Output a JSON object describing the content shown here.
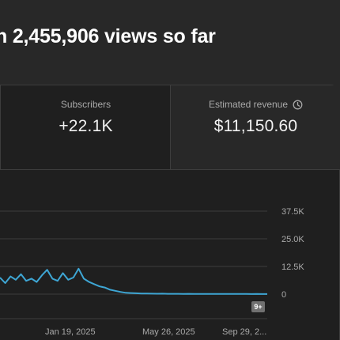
{
  "headline": "n 2,455,906 views so far",
  "metrics": [
    {
      "label": "Subscribers",
      "value": "+22.1K"
    },
    {
      "label": "Estimated revenue",
      "value": "$11,150.60",
      "icon": "clock-icon"
    }
  ],
  "badge": "9+",
  "colors": {
    "line": "#3ea6d4",
    "grid": "#3d3d3d",
    "background": "#282828"
  },
  "chart_data": {
    "type": "line",
    "title": "",
    "xlabel": "",
    "ylabel": "",
    "ylim": [
      0,
      37500
    ],
    "y_ticks": [
      "37.5K",
      "25.0K",
      "12.5K",
      "0"
    ],
    "x_ticks": [
      "Jan 19, 2025",
      "May 26, 2025",
      "Sep 29, 2..."
    ],
    "series": [
      {
        "values": [
          [
            -6,
            7500
          ],
          [
            -5,
            5000
          ],
          [
            -4,
            8000
          ],
          [
            -3,
            6500
          ],
          [
            -2,
            9000
          ],
          [
            -1,
            6000
          ],
          [
            0,
            7000
          ],
          [
            1,
            5500
          ],
          [
            2,
            8500
          ],
          [
            3,
            11000
          ],
          [
            4,
            7000
          ],
          [
            5,
            6000
          ],
          [
            6,
            9500
          ],
          [
            7,
            6500
          ],
          [
            8,
            7500
          ],
          [
            9,
            11500
          ],
          [
            10,
            7000
          ],
          [
            11,
            5500
          ],
          [
            12,
            4500
          ],
          [
            13,
            3500
          ],
          [
            14,
            3000
          ],
          [
            15,
            2000
          ],
          [
            16,
            1500
          ],
          [
            17,
            1000
          ],
          [
            18,
            600
          ],
          [
            19,
            500
          ],
          [
            20,
            400
          ],
          [
            21,
            300
          ],
          [
            22,
            250
          ],
          [
            23,
            200
          ],
          [
            24,
            180
          ],
          [
            25,
            200
          ],
          [
            26,
            150
          ],
          [
            27,
            160
          ],
          [
            28,
            140
          ],
          [
            29,
            120
          ],
          [
            30,
            150
          ],
          [
            31,
            110
          ],
          [
            32,
            100
          ],
          [
            33,
            120
          ],
          [
            34,
            90
          ],
          [
            35,
            100
          ],
          [
            36,
            80
          ],
          [
            37,
            90
          ],
          [
            38,
            70
          ],
          [
            39,
            80
          ],
          [
            40,
            60
          ],
          [
            41,
            70
          ],
          [
            42,
            50
          ],
          [
            43,
            60
          ],
          [
            44,
            50
          ],
          [
            45,
            40
          ]
        ]
      }
    ]
  }
}
